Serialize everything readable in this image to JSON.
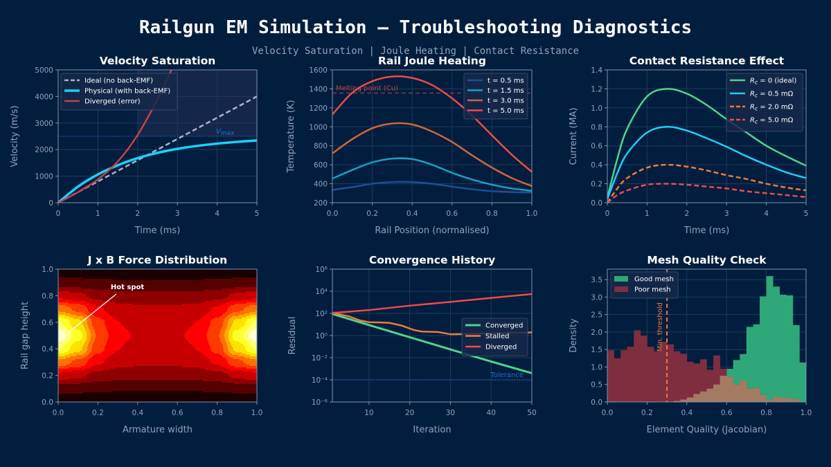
{
  "title": "Railgun EM Simulation — Troubleshooting Diagnostics",
  "subtitle": "Velocity Saturation  |  Joule Heating  |  Contact Resistance",
  "chart_data": [
    {
      "type": "line",
      "title": "Velocity Saturation",
      "xlabel": "Time (ms)",
      "ylabel": "Velocity (m/s)",
      "xlim": [
        0,
        5
      ],
      "ylim": [
        0,
        5000
      ],
      "xticks": [
        0,
        1,
        2,
        3,
        4,
        5
      ],
      "yticks": [
        0,
        1000,
        2000,
        3000,
        4000,
        5000
      ],
      "grid": true,
      "legend": "top-left",
      "shaded_region": {
        "x": [
          2,
          5
        ],
        "y": [
          2500,
          5000
        ]
      },
      "hline": {
        "y": 2500,
        "label_main": "V",
        "label_sub": "max",
        "color": "#1e6fd9"
      },
      "series": [
        {
          "name": "Ideal (no back-EMF)",
          "color": "#a9b4c8",
          "dash": true,
          "x": [
            0,
            1,
            2,
            3,
            4,
            5
          ],
          "y": [
            0,
            800,
            1600,
            2400,
            3200,
            4000
          ]
        },
        {
          "name": "Physical (with back-EMF)",
          "color": "#1ad1ff",
          "dash": false,
          "width": 3.5,
          "x": [
            0,
            0.5,
            1,
            1.5,
            2,
            2.5,
            3,
            3.5,
            4,
            4.5,
            5
          ],
          "y": [
            0,
            606,
            1065,
            1410,
            1677,
            1876,
            2028,
            2140,
            2225,
            2290,
            2345
          ]
        },
        {
          "name": "Diverged (error)",
          "color": "#c84048",
          "dash": false,
          "x": [
            0,
            0.5,
            1,
            1.5,
            2,
            2.5,
            2.85
          ],
          "y": [
            0,
            400,
            880,
            1550,
            2550,
            3900,
            5000
          ]
        }
      ]
    },
    {
      "type": "line",
      "title": "Rail Joule Heating",
      "xlabel": "Rail Position (normalised)",
      "ylabel": "Temperature (K)",
      "xlim": [
        0,
        1
      ],
      "ylim": [
        200,
        1600
      ],
      "xticks": [
        0,
        0.2,
        0.4,
        0.6,
        0.8,
        1.0
      ],
      "xtick_labels": [
        "0.0",
        "0.2",
        "0.4",
        "0.6",
        "0.8",
        "1.0"
      ],
      "yticks": [
        200,
        400,
        600,
        800,
        1000,
        1200,
        1400,
        1600
      ],
      "grid": true,
      "legend": "top-right",
      "hline": {
        "y": 1356,
        "label": "Melting point (Cu)",
        "color": "#c84048"
      },
      "series": [
        {
          "name": "t = 0.5 ms",
          "color": "#1e4f9a",
          "x": [
            0,
            0.1,
            0.2,
            0.3,
            0.4,
            0.5,
            0.6,
            0.7,
            0.8,
            0.9,
            1.0
          ],
          "y": [
            335,
            365,
            400,
            418,
            418,
            400,
            370,
            342,
            322,
            312,
            308
          ]
        },
        {
          "name": "t = 1.5 ms",
          "color": "#1a9fc8",
          "x": [
            0,
            0.1,
            0.2,
            0.3,
            0.4,
            0.5,
            0.6,
            0.7,
            0.8,
            0.9,
            1.0
          ],
          "y": [
            455,
            545,
            625,
            665,
            660,
            600,
            515,
            445,
            390,
            350,
            325
          ]
        },
        {
          "name": "t = 3.0 ms",
          "color": "#d2643c",
          "x": [
            0,
            0.1,
            0.2,
            0.3,
            0.4,
            0.5,
            0.6,
            0.7,
            0.8,
            0.9,
            1.0
          ],
          "y": [
            720,
            870,
            985,
            1035,
            1025,
            950,
            840,
            700,
            570,
            460,
            375
          ]
        },
        {
          "name": "t = 5.0 ms",
          "color": "#f04a4a",
          "x": [
            0,
            0.1,
            0.2,
            0.3,
            0.4,
            0.5,
            0.6,
            0.7,
            0.8,
            0.9,
            1.0
          ],
          "y": [
            1130,
            1360,
            1480,
            1530,
            1515,
            1440,
            1300,
            1120,
            910,
            705,
            525
          ]
        }
      ]
    },
    {
      "type": "line",
      "title": "Contact Resistance Effect",
      "xlabel": "Time (ms)",
      "ylabel": "Current (MA)",
      "xlim": [
        0,
        5
      ],
      "ylim": [
        0,
        1.4
      ],
      "xticks": [
        0,
        1,
        2,
        3,
        4,
        5
      ],
      "yticks": [
        0,
        0.2,
        0.4,
        0.6,
        0.8,
        1.0,
        1.2,
        1.4
      ],
      "ytick_labels": [
        "0.0",
        "0.2",
        "0.4",
        "0.6",
        "0.8",
        "1.0",
        "1.2",
        "1.4"
      ],
      "grid": true,
      "legend": "top-right",
      "series": [
        {
          "name": "R_c = 0 (ideal)",
          "color": "#4cd68a",
          "dash": false,
          "x": [
            0,
            0.25,
            0.5,
            1,
            1.5,
            2,
            2.5,
            3,
            3.5,
            4,
            4.5,
            5
          ],
          "y": [
            0.05,
            0.46,
            0.78,
            1.12,
            1.2,
            1.15,
            1.03,
            0.88,
            0.74,
            0.6,
            0.49,
            0.39
          ]
        },
        {
          "name": "R_c = 0.5 mΩ",
          "color": "#1ad1ff",
          "dash": false,
          "x": [
            0,
            0.25,
            0.5,
            1,
            1.5,
            2,
            2.5,
            3,
            3.5,
            4,
            4.5,
            5
          ],
          "y": [
            0.04,
            0.31,
            0.52,
            0.74,
            0.8,
            0.76,
            0.68,
            0.59,
            0.49,
            0.4,
            0.32,
            0.26
          ]
        },
        {
          "name": "R_c = 2.0 mΩ",
          "color": "#f07a3c",
          "dash": true,
          "x": [
            0,
            0.25,
            0.5,
            1,
            1.5,
            2,
            2.5,
            3,
            3.5,
            4,
            4.5,
            5
          ],
          "y": [
            0,
            0.15,
            0.26,
            0.37,
            0.4,
            0.38,
            0.34,
            0.29,
            0.25,
            0.2,
            0.16,
            0.13
          ]
        },
        {
          "name": "R_c = 5.0 mΩ",
          "color": "#f04a4a",
          "dash": true,
          "x": [
            0,
            0.25,
            0.5,
            1,
            1.5,
            2,
            2.5,
            3,
            3.5,
            4,
            4.5,
            5
          ],
          "y": [
            0,
            0.08,
            0.13,
            0.19,
            0.2,
            0.19,
            0.17,
            0.15,
            0.12,
            0.1,
            0.08,
            0.06
          ]
        }
      ]
    },
    {
      "type": "heatmap",
      "title": "J x B Force Distribution",
      "xlabel": "Armature width",
      "ylabel": "Rail gap height",
      "xlim": [
        0,
        1
      ],
      "ylim": [
        0,
        1
      ],
      "xticks": [
        0,
        0.2,
        0.4,
        0.6,
        0.8,
        1.0
      ],
      "xtick_labels": [
        "0.0",
        "0.2",
        "0.4",
        "0.6",
        "0.8",
        "1.0"
      ],
      "yticks": [
        0,
        0.2,
        0.4,
        0.6,
        0.8,
        1.0
      ],
      "ytick_labels": [
        "0.0",
        "0.2",
        "0.4",
        "0.6",
        "0.8",
        "1.0"
      ],
      "colormap": "hot",
      "levels": 12,
      "zlim": [
        0,
        1.3
      ],
      "annotation": {
        "text": "Hot spot",
        "x": 0.05,
        "y": 0.52
      },
      "x": [
        0,
        0.1,
        0.2,
        0.3,
        0.4,
        0.5,
        0.6,
        0.7,
        0.8,
        0.9,
        1.0
      ],
      "y": [
        0,
        0.1,
        0.2,
        0.3,
        0.4,
        0.5,
        0.6,
        0.7,
        0.8,
        0.9,
        1.0
      ],
      "z": [
        [
          0.006,
          0.004,
          0.002,
          0,
          0,
          0,
          0,
          0,
          0.002,
          0.004,
          0.006
        ],
        [
          0.154,
          0.145,
          0.129,
          0.122,
          0.12,
          0.12,
          0.12,
          0.122,
          0.129,
          0.145,
          0.154
        ],
        [
          0.39,
          0.35,
          0.286,
          0.257,
          0.25,
          0.25,
          0.25,
          0.257,
          0.286,
          0.35,
          0.39
        ],
        [
          0.73,
          0.62,
          0.45,
          0.37,
          0.35,
          0.35,
          0.35,
          0.37,
          0.45,
          0.62,
          0.73
        ],
        [
          1.1,
          0.9,
          0.58,
          0.435,
          0.403,
          0.4,
          0.403,
          0.435,
          0.58,
          0.9,
          1.1
        ],
        [
          1.27,
          1.03,
          0.64,
          0.46,
          0.424,
          0.42,
          0.424,
          0.46,
          0.64,
          1.03,
          1.27
        ],
        [
          1.1,
          0.9,
          0.58,
          0.435,
          0.403,
          0.4,
          0.403,
          0.435,
          0.58,
          0.9,
          1.1
        ],
        [
          0.73,
          0.62,
          0.45,
          0.37,
          0.35,
          0.35,
          0.35,
          0.37,
          0.45,
          0.62,
          0.73
        ],
        [
          0.39,
          0.35,
          0.286,
          0.257,
          0.25,
          0.25,
          0.25,
          0.257,
          0.286,
          0.35,
          0.39
        ],
        [
          0.154,
          0.145,
          0.129,
          0.122,
          0.12,
          0.12,
          0.12,
          0.122,
          0.129,
          0.145,
          0.154
        ],
        [
          0.006,
          0.004,
          0.002,
          0,
          0,
          0,
          0,
          0,
          0.002,
          0.004,
          0.006
        ]
      ]
    },
    {
      "type": "line",
      "title": "Convergence History",
      "xlabel": "Iteration",
      "ylabel": "Residual",
      "xlim": [
        1,
        50
      ],
      "ylim": [
        1e-06,
        1000000.0
      ],
      "yscale": "log",
      "xticks": [
        10,
        20,
        30,
        40,
        50
      ],
      "yticks": [
        1e-06,
        0.0001,
        0.01,
        1,
        100.0,
        10000.0,
        1000000.0
      ],
      "ytick_labels": [
        "10⁻⁶",
        "10⁻⁴",
        "10⁻²",
        "10⁰",
        "10²",
        "10⁴",
        "10⁶"
      ],
      "grid": true,
      "legend": "center-right",
      "hline": {
        "y": 0.0001,
        "label": "Tolerance",
        "color": "#1e6fd9"
      },
      "series": [
        {
          "name": "Converged",
          "color": "#4cd68a",
          "width": 3,
          "x": [
            1,
            10,
            20,
            30,
            40,
            50
          ],
          "y": [
            89,
            8.9,
            0.71,
            0.056,
            0.0045,
            0.0004
          ]
        },
        {
          "name": "Stalled",
          "color": "#f07a3c",
          "width": 2.5,
          "x": [
            1,
            5,
            8,
            10,
            13,
            15,
            18,
            21,
            23,
            27,
            30,
            35,
            40,
            50
          ],
          "y": [
            112,
            55,
            22,
            16,
            15,
            14,
            8,
            3.2,
            2.3,
            2.1,
            1.3,
            1.4,
            1.6,
            1.9
          ]
        },
        {
          "name": "Diverged",
          "color": "#f04a4a",
          "width": 2.5,
          "x": [
            1,
            10,
            20,
            30,
            40,
            50
          ],
          "y": [
            112,
            200,
            500,
            1100,
            2500,
            5600
          ]
        }
      ]
    },
    {
      "type": "bar",
      "subtype": "histogram",
      "title": "Mesh Quality Check",
      "xlabel": "Element Quality (Jacobian)",
      "ylabel": "Density",
      "xlim": [
        0,
        1
      ],
      "ylim": [
        0,
        3.8
      ],
      "xticks": [
        0,
        0.2,
        0.4,
        0.6,
        0.8,
        1.0
      ],
      "xtick_labels": [
        "0.0",
        "0.2",
        "0.4",
        "0.6",
        "0.8",
        "1.0"
      ],
      "yticks": [
        0,
        0.5,
        1,
        1.5,
        2,
        2.5,
        3,
        3.5
      ],
      "ytick_labels": [
        "0.0",
        "0.5",
        "1.0",
        "1.5",
        "2.0",
        "2.5",
        "3.0",
        "3.5"
      ],
      "grid": true,
      "legend": "top-left",
      "bins": 30,
      "vline": {
        "x": 0.3,
        "label": "Min. threshold",
        "color": "#f07a3c"
      },
      "overlap_color": "#a57a62",
      "series": [
        {
          "name": "Good mesh",
          "color": "#2ea878",
          "values": [
            0,
            0,
            0,
            0,
            0,
            0,
            0,
            0,
            0,
            0,
            0.03,
            0.07,
            0.13,
            0.23,
            0.3,
            0.38,
            0.5,
            0.75,
            0.95,
            1.2,
            1.37,
            2.15,
            2.22,
            3.02,
            3.6,
            3.3,
            3.07,
            3.05,
            2.2,
            1.13
          ]
        },
        {
          "name": "Poor mesh",
          "color": "#7e2e3e",
          "values": [
            1.48,
            1.25,
            1.48,
            1.58,
            2.05,
            1.9,
            1.58,
            1.45,
            1.72,
            1.65,
            1.45,
            1.38,
            1.15,
            1.1,
            1.22,
            0.92,
            1.33,
            0.95,
            0.72,
            0.5,
            0.62,
            0.38,
            0.4,
            0.2,
            0.05,
            0.15,
            0.12,
            0.1,
            0.08,
            0
          ]
        }
      ]
    }
  ]
}
